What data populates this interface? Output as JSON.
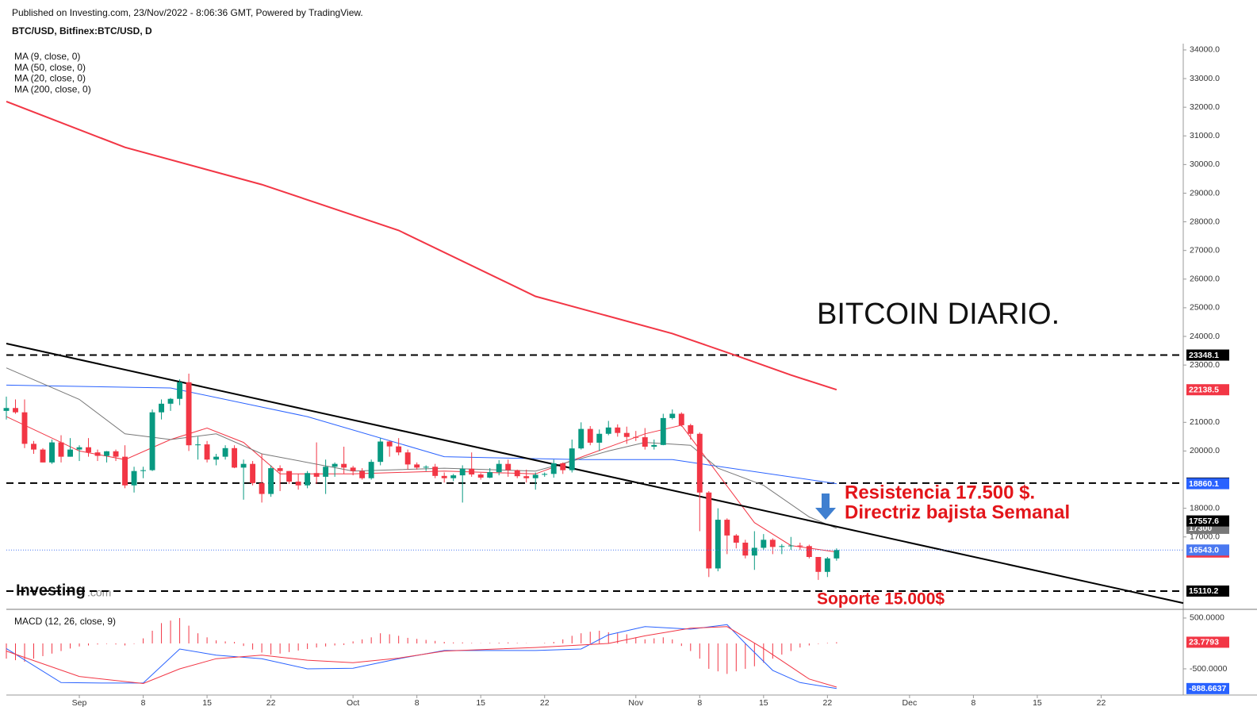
{
  "header": {
    "published": "Published on Investing.com, 23/Nov/2022 - 8:06:36 GMT, Powered by TradingView.",
    "symbol": "BTC/USD, Bitfinex:BTC/USD, D"
  },
  "watermark": {
    "name": "Investing",
    "suffix": ".com"
  },
  "chart_data": [
    {
      "type": "candlestick",
      "title": "BITCOIN DIARIO.",
      "annotations": [
        "Resistencia 17.500 $.",
        "Directriz bajista Semanal",
        "Soporte 15.000$"
      ],
      "up_color": "#089981",
      "down_color": "#f23645",
      "xlim": [
        -8,
        121
      ],
      "ylim": [
        14500,
        34220
      ],
      "yticks": [
        {
          "value": 17000,
          "label": "17000.0"
        },
        {
          "value": 18000,
          "label": "18000.0"
        },
        {
          "value": 20000,
          "label": "20000.0"
        },
        {
          "value": 21000,
          "label": "21000.0"
        },
        {
          "value": 23000,
          "label": "23000.0"
        },
        {
          "value": 24000,
          "label": "24000.0"
        },
        {
          "value": 25000,
          "label": "25000.0"
        },
        {
          "value": 26000,
          "label": "26000.0"
        },
        {
          "value": 27000,
          "label": "27000.0"
        },
        {
          "value": 28000,
          "label": "28000.0"
        },
        {
          "value": 29000,
          "label": "29000.0"
        },
        {
          "value": 30000,
          "label": "30000.0"
        },
        {
          "value": 31000,
          "label": "31000.0"
        },
        {
          "value": 32000,
          "label": "32000.0"
        },
        {
          "value": 33000,
          "label": "33000.0"
        },
        {
          "value": 34000,
          "label": "34000.0"
        }
      ],
      "x": [
        -8,
        -7,
        -6,
        -5,
        -4,
        -3,
        -2,
        -1,
        0,
        1,
        2,
        3,
        4,
        5,
        6,
        7,
        8,
        9,
        10,
        11,
        12,
        13,
        14,
        15,
        16,
        17,
        18,
        19,
        20,
        21,
        22,
        23,
        24,
        25,
        26,
        27,
        28,
        29,
        30,
        31,
        32,
        33,
        34,
        35,
        36,
        37,
        38,
        39,
        40,
        41,
        42,
        43,
        44,
        45,
        46,
        47,
        48,
        49,
        50,
        51,
        52,
        53,
        54,
        55,
        56,
        57,
        58,
        59,
        60,
        61,
        62,
        63,
        64,
        65,
        66,
        67,
        68,
        69,
        70,
        71,
        72,
        73,
        74,
        75,
        76,
        77,
        78,
        79,
        80,
        81,
        82,
        83
      ],
      "open": [
        21400,
        21500,
        21350,
        20250,
        20050,
        19600,
        20300,
        19800,
        20050,
        20130,
        19950,
        19830,
        19990,
        19800,
        18800,
        19300,
        19330,
        21350,
        21650,
        21820,
        22400,
        20200,
        20230,
        19700,
        19800,
        20100,
        19420,
        19550,
        18880,
        18500,
        19400,
        19300,
        18930,
        18800,
        19230,
        19100,
        19450,
        19550,
        19420,
        19300,
        19050,
        19620,
        20330,
        20160,
        19950,
        19530,
        19420,
        19450,
        19130,
        19050,
        19150,
        19380,
        19180,
        19070,
        19260,
        19550,
        19330,
        19120,
        19050,
        19170,
        19200,
        19570,
        19330,
        20090,
        20770,
        20290,
        20600,
        20820,
        20630,
        20490,
        20480,
        20150,
        20210,
        21150,
        21300,
        20900,
        20600,
        18550,
        15900,
        17600,
        17050,
        16800,
        16350,
        16620,
        16900,
        16650,
        16680,
        16700,
        16680,
        16300,
        15780,
        16250
      ],
      "high": [
        21900,
        21800,
        21800,
        20350,
        20100,
        20400,
        20550,
        20450,
        20200,
        20450,
        20050,
        20000,
        20050,
        20200,
        19450,
        19450,
        21450,
        21800,
        21850,
        22500,
        22700,
        20500,
        20350,
        19900,
        20200,
        20200,
        19700,
        19650,
        19900,
        19500,
        19500,
        19300,
        19200,
        19300,
        20300,
        19700,
        19600,
        20150,
        19480,
        19400,
        19700,
        20450,
        20350,
        20450,
        20050,
        19600,
        19500,
        19550,
        19250,
        19200,
        19500,
        19950,
        19230,
        19400,
        19680,
        19700,
        19350,
        19350,
        19250,
        19250,
        19700,
        19600,
        20400,
        21000,
        20870,
        20750,
        21050,
        20930,
        20850,
        20700,
        20800,
        20400,
        21300,
        21450,
        21350,
        20950,
        20650,
        18600,
        18000,
        17650,
        17100,
        16900,
        17200,
        17100,
        16950,
        16750,
        17000,
        16800,
        16730,
        16300,
        16300,
        16600
      ],
      "low": [
        21100,
        21300,
        20100,
        19900,
        19600,
        19550,
        19600,
        19800,
        19650,
        19800,
        19650,
        19600,
        19650,
        18700,
        18550,
        19050,
        19300,
        21100,
        21400,
        21600,
        20000,
        19700,
        19600,
        19500,
        19700,
        19400,
        18300,
        18800,
        18200,
        18400,
        18600,
        18850,
        18650,
        18700,
        18850,
        18500,
        19100,
        19200,
        19150,
        19000,
        19000,
        19500,
        19800,
        19850,
        19350,
        19350,
        19300,
        19050,
        18900,
        18950,
        18200,
        19100,
        19000,
        19050,
        19150,
        19100,
        19050,
        18900,
        18650,
        19100,
        19070,
        19200,
        19250,
        20050,
        20200,
        20000,
        20550,
        20500,
        20250,
        20350,
        20050,
        20050,
        20200,
        21100,
        20850,
        20400,
        17200,
        15600,
        15800,
        16400,
        16600,
        16250,
        15850,
        16550,
        16400,
        16400,
        16550,
        16550,
        16250,
        15500,
        15600,
        16170
      ],
      "close": [
        21500,
        21350,
        20250,
        20050,
        19600,
        20300,
        19800,
        20050,
        20130,
        19950,
        19830,
        19990,
        19800,
        18800,
        19300,
        19330,
        21350,
        21650,
        21820,
        22400,
        20200,
        20230,
        19700,
        19800,
        20100,
        19420,
        19550,
        18880,
        18500,
        19400,
        19300,
        18930,
        18800,
        19230,
        19100,
        19450,
        19550,
        19420,
        19300,
        19050,
        19620,
        20330,
        20160,
        19950,
        19530,
        19420,
        19450,
        19130,
        19050,
        19150,
        19380,
        19180,
        19070,
        19260,
        19550,
        19330,
        19120,
        19050,
        19170,
        19200,
        19570,
        19330,
        20090,
        20770,
        20290,
        20600,
        20820,
        20630,
        20490,
        20480,
        20150,
        20210,
        21150,
        21300,
        20900,
        20600,
        18550,
        15900,
        17600,
        17050,
        16800,
        16350,
        16620,
        16900,
        16650,
        16680,
        16700,
        16680,
        16300,
        15780,
        16250,
        16543
      ],
      "last_label": {
        "value": 16543,
        "label": "16543.0",
        "color": "#4a78f0"
      },
      "series": [
        {
          "name": "MA (9, close, 0)",
          "color": "#f23645",
          "width": 1,
          "x": [
            -8,
            0,
            5,
            10,
            14,
            18,
            22,
            30,
            40,
            50,
            56,
            62,
            66,
            70,
            74,
            78,
            83
          ],
          "values": [
            21200,
            20000,
            19700,
            20400,
            20800,
            20300,
            19200,
            19200,
            19300,
            19200,
            19900,
            20600,
            20900,
            19200,
            17500,
            16700,
            16472.9
          ]
        },
        {
          "name": "MA (50, close, 0)",
          "color": "#2962ff",
          "width": 1,
          "x": [
            -8,
            10,
            25,
            40,
            55,
            65,
            83
          ],
          "values": [
            22300,
            22200,
            21200,
            19800,
            19700,
            19700,
            18860.1
          ]
        },
        {
          "name": "MA (20, close, 0)",
          "color": "#787878",
          "width": 1,
          "x": [
            -8,
            0,
            5,
            10,
            15,
            20,
            30,
            40,
            50,
            58,
            62,
            67,
            70,
            75,
            80,
            83
          ],
          "values": [
            22900,
            21800,
            20600,
            20400,
            20600,
            19900,
            19300,
            19400,
            19300,
            20000,
            20300,
            20200,
            19400,
            18800,
            17700,
            17300
          ]
        },
        {
          "name": "MA (200, close, 0)",
          "color": "#f23645",
          "width": 2,
          "x": [
            -8,
            5,
            20,
            35,
            50,
            65,
            72,
            78,
            83
          ],
          "values": [
            32200,
            30600,
            29300,
            27700,
            25400,
            24100,
            23330,
            22650,
            22138.5
          ]
        }
      ],
      "levels": [
        23348.1,
        18879.9,
        15110.2
      ],
      "level_color": "#000000",
      "trendline": {
        "x": [
          -8,
          121
        ],
        "values": [
          23750,
          14690
        ],
        "color": "#000000"
      },
      "trend_label": {
        "value": 17557.6,
        "color": "#000000"
      }
    },
    {
      "type": "macd",
      "title": "MACD (12, 26, close, 9)",
      "xlim": [
        -8,
        121
      ],
      "ylim": [
        -1016,
        640
      ],
      "yticks": [
        {
          "value": 500,
          "label": "500.0000"
        },
        {
          "value": -500,
          "label": "-500.0000"
        }
      ],
      "xticks": [
        {
          "value": 0,
          "label": "Sep"
        },
        {
          "value": 7,
          "label": "8"
        },
        {
          "value": 14,
          "label": "15"
        },
        {
          "value": 21,
          "label": "22"
        },
        {
          "value": 30,
          "label": "Oct"
        },
        {
          "value": 37,
          "label": "8"
        },
        {
          "value": 44,
          "label": "15"
        },
        {
          "value": 51,
          "label": "22"
        },
        {
          "value": 61,
          "label": "Nov"
        },
        {
          "value": 68,
          "label": "8"
        },
        {
          "value": 75,
          "label": "15"
        },
        {
          "value": 82,
          "label": "22"
        },
        {
          "value": 91,
          "label": "Dec"
        },
        {
          "value": 98,
          "label": "8"
        },
        {
          "value": 105,
          "label": "15"
        },
        {
          "value": 112,
          "label": "22"
        }
      ],
      "histogram": {
        "color": "#f23645",
        "values": [
          -300,
          -330,
          -360,
          -300,
          -250,
          -200,
          -150,
          -100,
          -60,
          -40,
          -20,
          -10,
          -20,
          -40,
          -10,
          100,
          250,
          400,
          450,
          500,
          350,
          200,
          120,
          60,
          40,
          30,
          -50,
          -120,
          -180,
          -220,
          -200,
          -170,
          -140,
          -110,
          -80,
          -60,
          -40,
          -30,
          40,
          80,
          120,
          200,
          180,
          150,
          110,
          90,
          70,
          50,
          30,
          20,
          20,
          10,
          5,
          10,
          15,
          20,
          10,
          5,
          0,
          10,
          30,
          80,
          150,
          200,
          230,
          250,
          220,
          200,
          180,
          120,
          80,
          100,
          120,
          80,
          -50,
          -150,
          -300,
          -500,
          -550,
          -600,
          -550,
          -500,
          -450,
          -380,
          -300,
          -220,
          -150,
          -80,
          -40,
          -10,
          10,
          23.7793
        ]
      },
      "series": [
        {
          "color": "#2962ff",
          "x": [
            -8,
            -2,
            3,
            7,
            11,
            15,
            20,
            25,
            30,
            35,
            40,
            50,
            55,
            58,
            62,
            67,
            71,
            73,
            76,
            79,
            83
          ],
          "values": [
            -100,
            -770,
            -780,
            -780,
            -110,
            -230,
            -300,
            -500,
            -490,
            -300,
            -140,
            -140,
            -110,
            170,
            330,
            280,
            370,
            0,
            -530,
            -770,
            -888.6637
          ]
        },
        {
          "color": "#f23645",
          "x": [
            -8,
            0,
            7,
            11,
            15,
            20,
            25,
            30,
            35,
            40,
            50,
            58,
            62,
            67,
            71,
            75,
            80,
            83
          ],
          "values": [
            -150,
            -650,
            -790,
            -500,
            -300,
            -230,
            -330,
            -380,
            -290,
            -150,
            -80,
            0,
            150,
            300,
            330,
            -100,
            -700,
            -860
          ]
        }
      ]
    }
  ]
}
